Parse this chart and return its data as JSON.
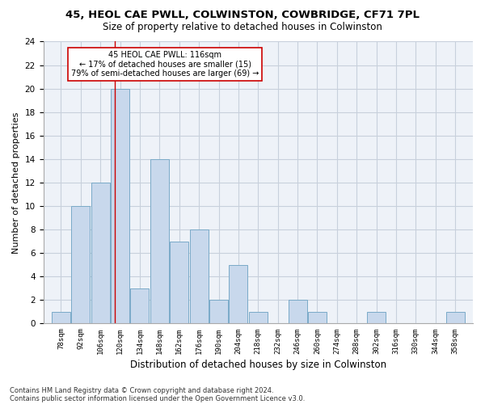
{
  "title1": "45, HEOL CAE PWLL, COLWINSTON, COWBRIDGE, CF71 7PL",
  "title2": "Size of property relative to detached houses in Colwinston",
  "xlabel": "Distribution of detached houses by size in Colwinston",
  "ylabel": "Number of detached properties",
  "bins": [
    78,
    92,
    106,
    120,
    134,
    148,
    162,
    176,
    190,
    204,
    218,
    232,
    246,
    260,
    274,
    288,
    302,
    316,
    330,
    344,
    358
  ],
  "values": [
    1,
    10,
    12,
    20,
    3,
    14,
    7,
    8,
    2,
    5,
    1,
    0,
    2,
    1,
    0,
    0,
    1,
    0,
    0,
    0,
    1
  ],
  "bar_color": "#c8d8ec",
  "bar_edgecolor": "#7aaac8",
  "grid_color": "#c8d0dc",
  "bg_color": "#eef2f8",
  "vline_x": 116,
  "vline_color": "#cc0000",
  "annotation_text": "45 HEOL CAE PWLL: 116sqm\n← 17% of detached houses are smaller (15)\n79% of semi-detached houses are larger (69) →",
  "annotation_box_edgecolor": "#cc0000",
  "annotation_box_facecolor": "#ffffff",
  "ylim": [
    0,
    24
  ],
  "yticks": [
    0,
    2,
    4,
    6,
    8,
    10,
    12,
    14,
    16,
    18,
    20,
    22,
    24
  ],
  "footnote1": "Contains HM Land Registry data © Crown copyright and database right 2024.",
  "footnote2": "Contains public sector information licensed under the Open Government Licence v3.0.",
  "bin_width": 14,
  "title1_fontsize": 9.5,
  "title2_fontsize": 8.5,
  "xlabel_fontsize": 8.5,
  "ylabel_fontsize": 8
}
